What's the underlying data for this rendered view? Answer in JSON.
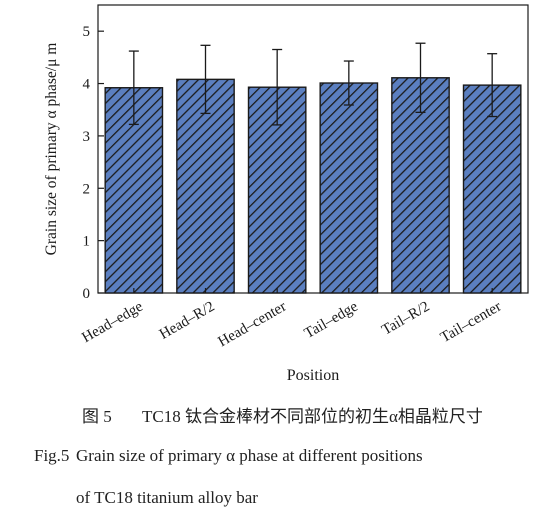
{
  "chart_data": {
    "type": "bar",
    "xlabel": "Position",
    "ylabel": "Grain size of primary α phase/μ m",
    "ylim": [
      0,
      5.5
    ],
    "yticks": [
      0,
      1,
      2,
      3,
      4,
      5
    ],
    "grid": false,
    "bar_fill": "#5b7fc0",
    "bar_hatch_color": "#1a1a1a",
    "categories": [
      "Head–edge",
      "Head–R/2",
      "Head–center",
      "Tail–edge",
      "Tail–R/2",
      "Tail–center"
    ],
    "values": [
      3.92,
      4.08,
      3.93,
      4.01,
      4.11,
      3.97
    ],
    "errors": [
      0.7,
      0.65,
      0.72,
      0.42,
      0.66,
      0.6
    ]
  },
  "caption": {
    "cn_num": "图 5",
    "cn_text": "TC18 钛合金棒材不同部位的初生α相晶粒尺寸",
    "en_num": "Fig.5",
    "en_text_line1": "Grain size of primary α phase at different positions",
    "en_text_line2": "of TC18 titanium alloy bar"
  }
}
